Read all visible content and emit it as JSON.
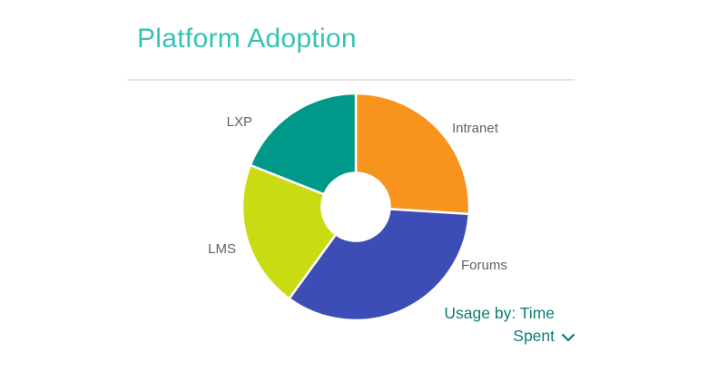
{
  "page": {
    "title": "Platform Adoption"
  },
  "dropdown": {
    "label": "Usage by: Time Spent"
  },
  "colors": {
    "title": "#35C3B6",
    "divider": "#E5E5E5",
    "label": "#5F6368",
    "dropdown": "#0D7D74"
  },
  "chart_data": {
    "type": "pie",
    "subtype": "donut",
    "title": "Platform Adoption",
    "labels": [
      "Intranet",
      "Forums",
      "LMS",
      "LXP"
    ],
    "values": [
      26,
      34,
      21,
      19
    ],
    "values_note": "percent share estimated from arc angles; no numeric labels shown in chart",
    "colors": [
      "#F7941D",
      "#3C4EB5",
      "#C9DB12",
      "#009989"
    ],
    "start_angle_deg": 0,
    "direction": "clockwise",
    "donut_hole_ratio": 0.3,
    "legend_position": "none",
    "selector_label": "Usage by: Time Spent"
  }
}
